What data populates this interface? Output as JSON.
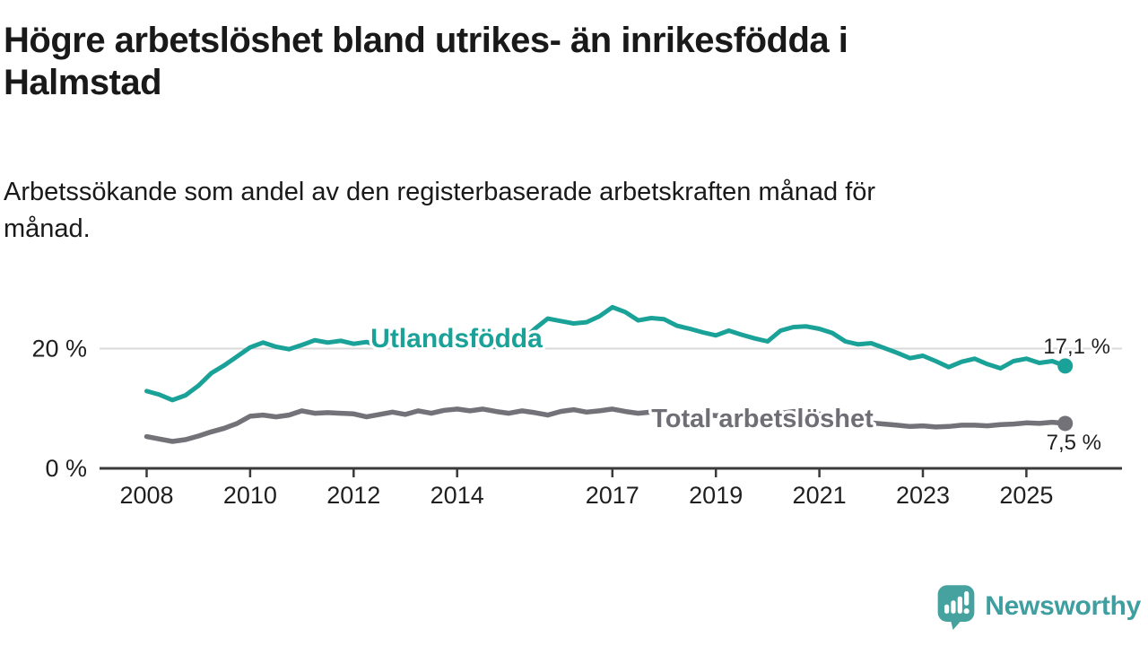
{
  "header": {
    "title": "Högre arbetslöshet bland utrikes- än inrikesfödda i\nHalmstad",
    "subtitle": "Arbetssökande som andel av den registerbaserade arbetskraften månad för\nmånad."
  },
  "chart_data": {
    "type": "line",
    "title": "Högre arbetslöshet bland utrikes- än inrikesfödda i Halmstad",
    "subtitle": "Arbetssökande som andel av den registerbaserade arbetskraften månad för månad.",
    "grid": "single horizontal gridline at 20 %",
    "legend_position": "inline labels on lines, end-value labels at right",
    "x_range": [
      2008,
      2025.82
    ],
    "ylim": [
      0,
      28
    ],
    "x_tick_labels": [
      "2008",
      "2010",
      "2012",
      "2014",
      "2017",
      "2019",
      "2021",
      "2023",
      "2025"
    ],
    "x_tick_values": [
      2008,
      2010,
      2012,
      2014,
      2017,
      2019,
      2021,
      2023,
      2025
    ],
    "y_ticks": [
      {
        "value": 0,
        "label": "0 %"
      },
      {
        "value": 20,
        "label": "20 %"
      }
    ],
    "x": [
      2008.0,
      2008.25,
      2008.5,
      2008.75,
      2009.0,
      2009.25,
      2009.5,
      2009.75,
      2010.0,
      2010.25,
      2010.5,
      2010.75,
      2011.0,
      2011.25,
      2011.5,
      2011.75,
      2012.0,
      2012.25,
      2012.5,
      2012.75,
      2013.0,
      2013.25,
      2013.5,
      2013.75,
      2014.0,
      2014.25,
      2014.5,
      2014.75,
      2015.0,
      2015.25,
      2015.5,
      2015.75,
      2016.0,
      2016.25,
      2016.5,
      2016.75,
      2017.0,
      2017.25,
      2017.5,
      2017.75,
      2018.0,
      2018.25,
      2018.5,
      2018.75,
      2019.0,
      2019.25,
      2019.5,
      2019.75,
      2020.0,
      2020.25,
      2020.5,
      2020.75,
      2021.0,
      2021.25,
      2021.5,
      2021.75,
      2022.0,
      2022.25,
      2022.5,
      2022.75,
      2023.0,
      2023.25,
      2023.5,
      2023.75,
      2024.0,
      2024.25,
      2024.5,
      2024.75,
      2025.0,
      2025.25,
      2025.5,
      2025.75
    ],
    "series": [
      {
        "name": "Utlandsfödda",
        "color": "#1aa298",
        "end_label": "17,1 %",
        "end_value": 17.1,
        "values": [
          12.9,
          12.3,
          11.4,
          12.2,
          13.8,
          15.9,
          17.2,
          18.7,
          20.2,
          21.0,
          20.3,
          19.9,
          20.6,
          21.4,
          21.0,
          21.3,
          20.8,
          21.1,
          20.5,
          20.8,
          21.0,
          20.5,
          20.9,
          20.4,
          20.7,
          21.0,
          20.6,
          20.3,
          20.8,
          21.3,
          23.3,
          25.0,
          24.6,
          24.2,
          24.4,
          25.4,
          26.9,
          26.1,
          24.7,
          25.1,
          24.9,
          23.8,
          23.3,
          22.7,
          22.2,
          23.0,
          22.3,
          21.7,
          21.2,
          23.0,
          23.6,
          23.7,
          23.3,
          22.6,
          21.2,
          20.7,
          20.9,
          20.1,
          19.3,
          18.4,
          18.8,
          17.9,
          16.9,
          17.8,
          18.3,
          17.4,
          16.7,
          17.9,
          18.3,
          17.6,
          17.9,
          17.1
        ]
      },
      {
        "name": "Total arbetslöshet",
        "color": "#737278",
        "end_label": "7,5 %",
        "end_value": 7.5,
        "values": [
          5.3,
          4.9,
          4.5,
          4.8,
          5.4,
          6.1,
          6.7,
          7.5,
          8.7,
          8.9,
          8.6,
          8.9,
          9.6,
          9.2,
          9.3,
          9.2,
          9.1,
          8.6,
          9.0,
          9.4,
          9.0,
          9.6,
          9.2,
          9.7,
          9.9,
          9.6,
          9.9,
          9.5,
          9.2,
          9.6,
          9.3,
          8.9,
          9.5,
          9.8,
          9.4,
          9.6,
          9.9,
          9.5,
          9.2,
          9.4,
          8.9,
          8.7,
          9.0,
          9.1,
          8.8,
          8.9,
          8.7,
          8.6,
          8.5,
          9.2,
          9.5,
          9.4,
          9.1,
          8.7,
          8.2,
          7.8,
          7.6,
          7.4,
          7.2,
          7.0,
          7.1,
          6.9,
          7.0,
          7.2,
          7.2,
          7.1,
          7.3,
          7.4,
          7.6,
          7.5,
          7.7,
          7.5
        ]
      }
    ]
  },
  "footer": {
    "brand": "Newsworthy",
    "brand_color": "#3f9fa0",
    "icon": "speech-bubble-bar-chart-icon"
  }
}
